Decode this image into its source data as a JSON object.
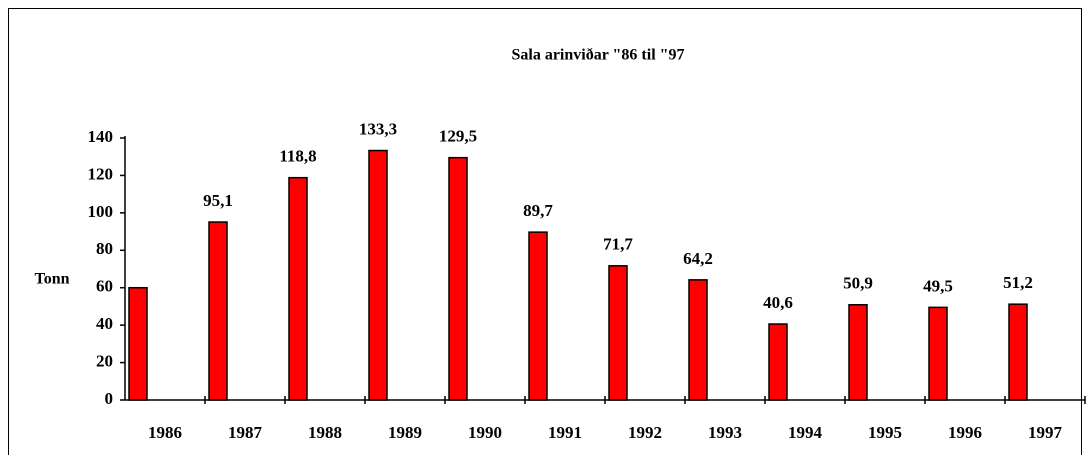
{
  "chart_data": {
    "type": "bar",
    "title": "Sala arinviðar \"86 til \"97",
    "y_label": "Tonn",
    "categories": [
      "1986",
      "1987",
      "1988",
      "1989",
      "1990",
      "1991",
      "1992",
      "1993",
      "1994",
      "1995",
      "1996",
      "1997"
    ],
    "values": [
      60,
      95.1,
      118.8,
      133.3,
      129.5,
      89.7,
      71.7,
      64.2,
      40.6,
      50.9,
      49.5,
      51.2
    ],
    "value_labels": [
      null,
      "95,1",
      "118,8",
      "133,3",
      "129,5",
      "89,7",
      "71,7",
      "64,2",
      "40,6",
      "50,9",
      "49,5",
      "51,2"
    ],
    "color": "#ff0000",
    "ylim": [
      0,
      140
    ],
    "yticks": [
      0,
      20,
      40,
      60,
      80,
      100,
      120,
      140
    ],
    "grid": false
  }
}
